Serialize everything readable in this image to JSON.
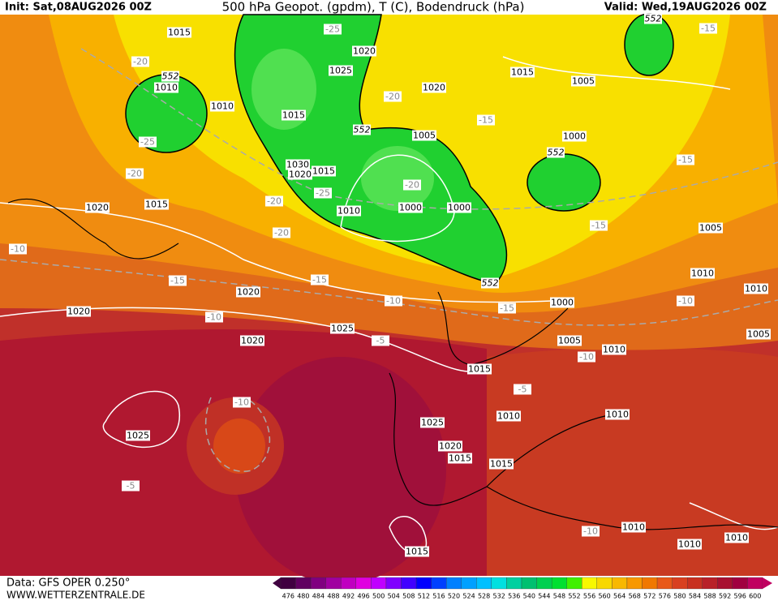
{
  "header": {
    "init": "Init: Sat,08AUG2026 00Z",
    "title": "500 hPa Geopot. (gpdm), T (C), Bodendruck (hPa)",
    "valid": "Valid: Wed,19AUG2026 00Z"
  },
  "footer": {
    "data": "Data: GFS OPER 0.250°",
    "url": "WWW.WETTERZENTRALE.DE"
  },
  "colorbar": {
    "labels": [
      476,
      480,
      484,
      488,
      492,
      496,
      500,
      504,
      508,
      512,
      516,
      520,
      524,
      528,
      532,
      536,
      540,
      544,
      548,
      552,
      556,
      560,
      564,
      568,
      572,
      576,
      580,
      584,
      588,
      592,
      596,
      600
    ],
    "colors": [
      "#400040",
      "#600060",
      "#800080",
      "#a000a0",
      "#c000c0",
      "#e000e0",
      "#c000ff",
      "#8000ff",
      "#4000ff",
      "#0000ff",
      "#0040ff",
      "#0080ff",
      "#00a0ff",
      "#00c0ff",
      "#00e0e0",
      "#00d0a0",
      "#00c070",
      "#00d050",
      "#00e030",
      "#40f000",
      "#f8f800",
      "#f8d800",
      "#f8b800",
      "#f89800",
      "#f07800",
      "#e85818",
      "#d84020",
      "#c83020",
      "#b82028",
      "#a81030",
      "#a00040",
      "#c00060"
    ]
  },
  "map": {
    "isobar_labels": [
      "1015",
      "1020",
      "1025",
      "1020",
      "1010",
      "1010",
      "1015",
      "1005",
      "1015",
      "1005",
      "1000",
      "1030",
      "1020",
      "1015",
      "1010",
      "1000",
      "1000",
      "1020",
      "1015",
      "1005",
      "1010",
      "1010",
      "1020",
      "1020",
      "1000",
      "1005",
      "1025",
      "1020",
      "1005",
      "1010",
      "1015",
      "1010",
      "1010",
      "1025",
      "1025",
      "1020",
      "1015",
      "1015",
      "1010",
      "1010",
      "1010",
      "1015"
    ],
    "temperature_labels": [
      "-25",
      "-15",
      "-20",
      "-20",
      "-15",
      "-25",
      "-20",
      "-25",
      "-20",
      "-15",
      "-20",
      "-20",
      "-15",
      "-10",
      "-15",
      "-15",
      "-10",
      "-15",
      "-10",
      "-10",
      "-5",
      "-10",
      "-5",
      "-10",
      "-5",
      "-10"
    ],
    "height_labels": [
      "552",
      "552",
      "552",
      "552",
      "552"
    ]
  }
}
